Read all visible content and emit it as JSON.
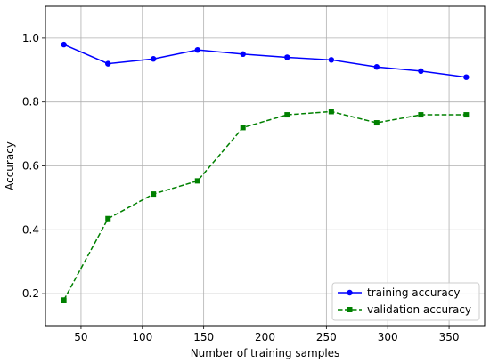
{
  "chart_data": {
    "type": "line",
    "title": "",
    "xlabel": "Number of training samples",
    "ylabel": "Accuracy",
    "xlim": [
      21,
      379
    ],
    "ylim": [
      0.1,
      1.1
    ],
    "xticks": [
      50,
      100,
      150,
      200,
      250,
      300,
      350
    ],
    "yticks": [
      0.2,
      0.4,
      0.6,
      0.8,
      1.0
    ],
    "xtick_labels": [
      "50",
      "100",
      "150",
      "200",
      "250",
      "300",
      "350"
    ],
    "ytick_labels": [
      "0.2",
      "0.4",
      "0.6",
      "0.8",
      "1.0"
    ],
    "grid": true,
    "legend_position": "bottom-right",
    "x": [
      36,
      72,
      109,
      145,
      182,
      218,
      254,
      291,
      327,
      364
    ],
    "series": [
      {
        "name": "training accuracy",
        "color": "#0000ff",
        "line_style": "solid",
        "marker": "circle",
        "values": [
          0.98,
          0.92,
          0.935,
          0.963,
          0.95,
          0.94,
          0.932,
          0.91,
          0.897,
          0.878
        ]
      },
      {
        "name": "validation accuracy",
        "color": "#008000",
        "line_style": "dashed",
        "marker": "square",
        "values": [
          0.18,
          0.435,
          0.512,
          0.553,
          0.72,
          0.76,
          0.77,
          0.735,
          0.76,
          0.76
        ]
      }
    ]
  }
}
